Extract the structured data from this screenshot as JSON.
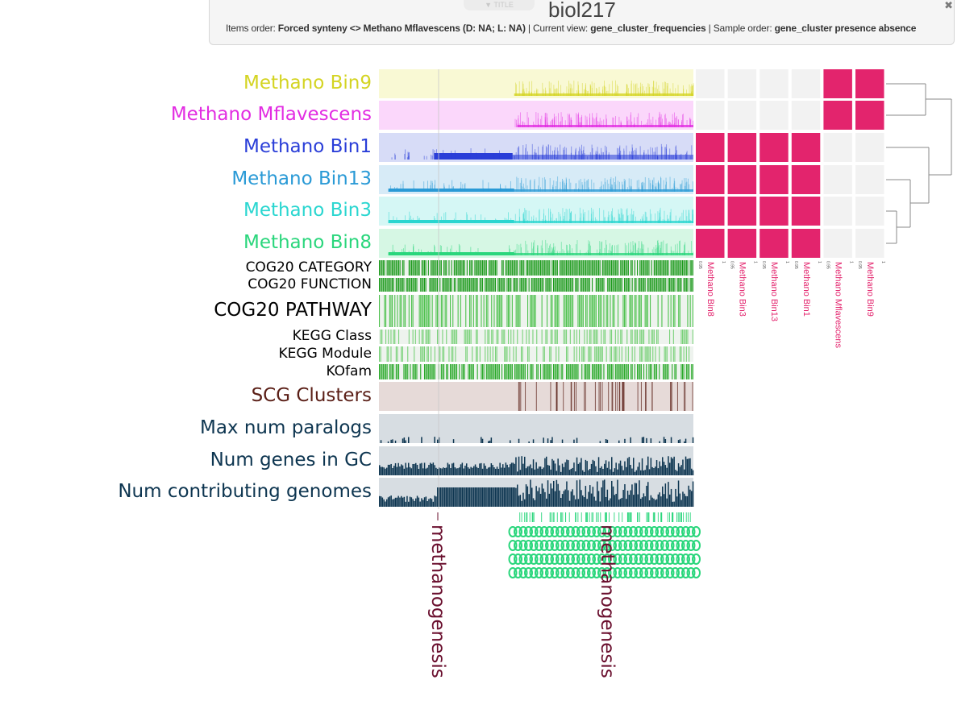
{
  "header": {
    "title_toggle": "▼ TITLE",
    "project_name": "biol217",
    "close_icon": "close-icon",
    "items_order_label": "Items order:",
    "items_order_value": "Forced synteny <> Methano Mflavescens (D: NA; L: NA)",
    "current_view_label": "Current view:",
    "current_view_value": "gene_cluster_frequencies",
    "sample_order_label": "Sample order:",
    "sample_order_value": "gene_cluster presence absence",
    "separator": "|"
  },
  "layers": [
    {
      "label": "Methano Bin9",
      "color": "#d4d422",
      "bg": "#f9f9d4"
    },
    {
      "label": "Methano Mflavescens",
      "color": "#e22ce2",
      "bg": "#fbd7fb"
    },
    {
      "label": "Methano Bin1",
      "color": "#2a3ed8",
      "bg": "#d7dcf7"
    },
    {
      "label": "Methano Bin13",
      "color": "#2a9ad6",
      "bg": "#d7ebf7"
    },
    {
      "label": "Methano Bin3",
      "color": "#2ad6d0",
      "bg": "#d5f7f5"
    },
    {
      "label": "Methano Bin8",
      "color": "#2ad67c",
      "bg": "#d6f7e4"
    },
    {
      "label": "COG20 CATEGORY",
      "color": "#000000"
    },
    {
      "label": "COG20 FUNCTION",
      "color": "#000000"
    },
    {
      "label": "COG20 PATHWAY",
      "color": "#000000"
    },
    {
      "label": "KEGG Class",
      "color": "#000000"
    },
    {
      "label": "KEGG Module",
      "color": "#000000"
    },
    {
      "label": "KOfam",
      "color": "#000000"
    },
    {
      "label": "SCG Clusters",
      "color": "#5a1e16",
      "bg": "#e6dad8"
    },
    {
      "label": "Max num paralogs",
      "color": "#0d3550",
      "bg": "#d7dde2"
    },
    {
      "label": "Num genes in GC",
      "color": "#0d3550",
      "bg": "#d7dde2"
    },
    {
      "label": "Num contributing genomes",
      "color": "#0d3550",
      "bg": "#d7dde2"
    }
  ],
  "heatmap": {
    "columns": [
      "Methano Bin8",
      "Methano Bin3",
      "Methano Bin13",
      "Methano Bin1",
      "Methano Mflavescens",
      "Methano Bin9"
    ],
    "rows": [
      "Methano Bin9",
      "Methano Mflavescens",
      "Methano Bin1",
      "Methano Bin13",
      "Methano Bin3",
      "Methano Bin8"
    ],
    "scale_labels": [
      "0.95",
      "1"
    ],
    "high_color": "#e3246d",
    "low_color": "#f2f2f2",
    "values": [
      [
        0,
        0,
        0,
        0,
        1,
        1
      ],
      [
        0,
        0,
        0,
        0,
        1,
        1
      ],
      [
        1,
        1,
        1,
        1,
        0,
        0
      ],
      [
        1,
        1,
        1,
        1,
        0,
        0
      ],
      [
        1,
        1,
        1,
        1,
        0,
        0
      ],
      [
        1,
        1,
        1,
        1,
        0,
        0
      ]
    ]
  },
  "bins": [
    {
      "label": "methanogenesis",
      "color": "#6a0f2e"
    },
    {
      "label": "methanogenesis",
      "color": "#6a0f2e"
    }
  ],
  "chart_data": {
    "type": "heatmap",
    "title": "biol217",
    "heatmap_columns": [
      "Methano Bin8",
      "Methano Bin3",
      "Methano Bin13",
      "Methano Bin1",
      "Methano Mflavescens",
      "Methano Bin9"
    ],
    "heatmap_rows": [
      "Methano Bin9",
      "Methano Mflavescens",
      "Methano Bin1",
      "Methano Bin13",
      "Methano Bin3",
      "Methano Bin8"
    ],
    "values": [
      [
        0,
        0,
        0,
        0,
        1,
        1
      ],
      [
        0,
        0,
        0,
        0,
        1,
        1
      ],
      [
        1,
        1,
        1,
        1,
        0,
        0
      ],
      [
        1,
        1,
        1,
        1,
        0,
        0
      ],
      [
        1,
        1,
        1,
        1,
        0,
        0
      ],
      [
        1,
        1,
        1,
        1,
        0,
        0
      ]
    ],
    "dendrogram_groups": [
      [
        "Methano Bin9",
        "Methano Mflavescens"
      ],
      [
        "Methano Bin1",
        "Methano Bin13",
        "Methano Bin3",
        "Methano Bin8"
      ]
    ],
    "legend": "none"
  }
}
